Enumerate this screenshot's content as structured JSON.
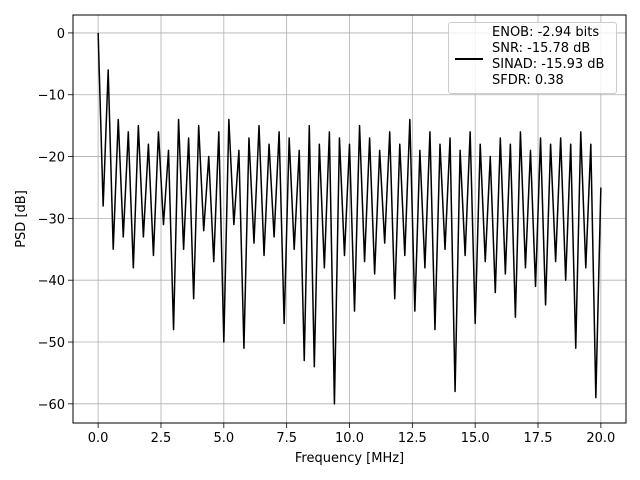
{
  "chart_data": {
    "type": "line",
    "xlabel": "Frequency [MHz]",
    "ylabel": "PSD [dB]",
    "x": [
      0,
      0.2,
      0.4,
      0.6,
      0.8,
      1.0,
      1.2,
      1.4,
      1.6,
      1.8,
      2.0,
      2.2,
      2.4,
      2.6,
      2.8,
      3.0,
      3.2,
      3.4,
      3.6,
      3.8,
      4.0,
      4.2,
      4.4,
      4.6,
      4.8,
      5.0,
      5.2,
      5.4,
      5.6,
      5.8,
      6.0,
      6.2,
      6.4,
      6.6,
      6.8,
      7.0,
      7.2,
      7.4,
      7.6,
      7.8,
      8.0,
      8.2,
      8.4,
      8.6,
      8.8,
      9.0,
      9.2,
      9.4,
      9.6,
      9.8,
      10.0,
      10.2,
      10.4,
      10.6,
      10.8,
      11.0,
      11.2,
      11.4,
      11.6,
      11.8,
      12.0,
      12.2,
      12.4,
      12.6,
      12.8,
      13.0,
      13.2,
      13.4,
      13.6,
      13.8,
      14.0,
      14.2,
      14.4,
      14.6,
      14.8,
      15.0,
      15.2,
      15.4,
      15.6,
      15.8,
      16.0,
      16.2,
      16.4,
      16.6,
      16.8,
      17.0,
      17.2,
      17.4,
      17.6,
      17.8,
      18.0,
      18.2,
      18.4,
      18.6,
      18.8,
      19.0,
      19.2,
      19.4,
      19.6,
      19.8,
      20.0
    ],
    "series": [
      {
        "name": "ENOB: -2.94 bits\nSNR: -15.78 dB\nSINAD: -15.93 dB\nSFDR: 0.38",
        "color": "#000000",
        "values": [
          0,
          -28,
          -6,
          -35,
          -14,
          -33,
          -16,
          -38,
          -15,
          -33,
          -18,
          -36,
          -16,
          -31,
          -19,
          -48,
          -14,
          -35,
          -17,
          -43,
          -15,
          -32,
          -20,
          -37,
          -16,
          -50,
          -14,
          -31,
          -19,
          -51,
          -17,
          -34,
          -15,
          -36,
          -18,
          -33,
          -16,
          -47,
          -17,
          -35,
          -19,
          -53,
          -15,
          -54,
          -18,
          -38,
          -16,
          -60,
          -17,
          -36,
          -18,
          -45,
          -15,
          -37,
          -17,
          -39,
          -19,
          -34,
          -16,
          -43,
          -18,
          -36,
          -14,
          -45,
          -19,
          -38,
          -16,
          -48,
          -18,
          -35,
          -17,
          -58,
          -19,
          -36,
          -16,
          -47,
          -18,
          -37,
          -20,
          -42,
          -17,
          -39,
          -18,
          -46,
          -16,
          -38,
          -19,
          -41,
          -17,
          -44,
          -18,
          -37,
          -17,
          -40,
          -18,
          -51,
          -16,
          -38,
          -18,
          -59,
          -25
        ]
      }
    ],
    "xlim": [
      -1.0,
      21.0
    ],
    "ylim": [
      -63.1,
      2.9
    ],
    "xticks": [
      {
        "value": 0,
        "label": "0.0"
      },
      2.5,
      {
        "value": 5,
        "label": "5.0"
      },
      7.5,
      {
        "value": 10,
        "label": "10.0"
      },
      12.5,
      {
        "value": 15,
        "label": "15.0"
      },
      17.5,
      {
        "value": 20,
        "label": "20.0"
      }
    ],
    "yticks": [
      {
        "value": -60,
        "label": "−60"
      },
      {
        "value": -50,
        "label": "−50"
      },
      {
        "value": -40,
        "label": "−40"
      },
      {
        "value": -30,
        "label": "−30"
      },
      {
        "value": -20,
        "label": "−20"
      },
      {
        "value": -10,
        "label": "−10"
      },
      0
    ],
    "grid": true,
    "legend": "upper right"
  }
}
